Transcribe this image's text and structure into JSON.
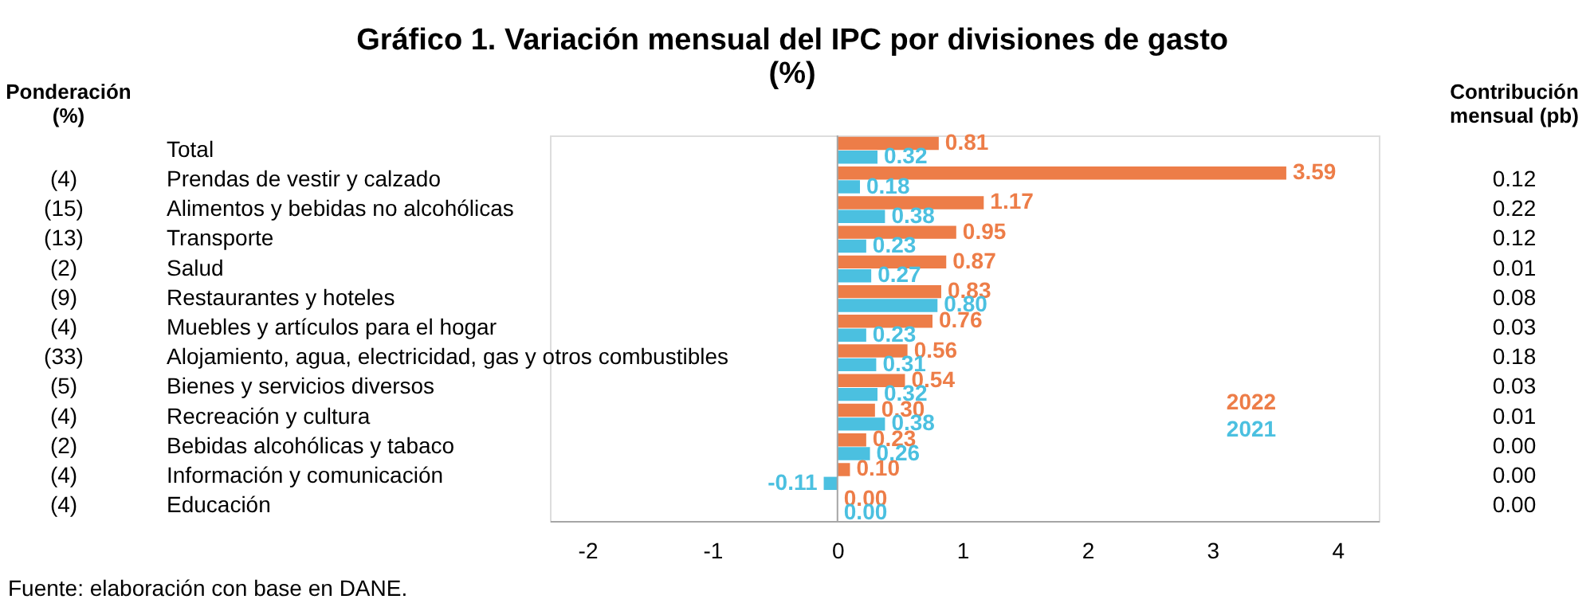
{
  "chart_data": {
    "type": "bar",
    "orientation": "horizontal",
    "title": "Gráfico 1. Variación mensual del IPC por divisiones de gasto",
    "subtitle": "(%)",
    "categories": [
      "Total",
      "Prendas de vestir y calzado",
      "Alimentos y bebidas no alcohólicas",
      "Transporte",
      "Salud",
      "Restaurantes y hoteles",
      "Muebles y artículos para el hogar",
      "Alojamiento, agua, electricidad, gas y otros combustibles",
      "Bienes y servicios diversos",
      "Recreación y cultura",
      "Bebidas alcohólicas y tabaco",
      "Información y comunicación",
      "Educación"
    ],
    "series": [
      {
        "name": "2022",
        "color": "#ed7d48",
        "values": [
          0.81,
          3.59,
          1.17,
          0.95,
          0.87,
          0.83,
          0.76,
          0.56,
          0.54,
          0.3,
          0.23,
          0.1,
          0.0
        ]
      },
      {
        "name": "2021",
        "color": "#4bc0e0",
        "values": [
          0.32,
          0.18,
          0.38,
          0.23,
          0.27,
          0.8,
          0.23,
          0.31,
          0.32,
          0.38,
          0.26,
          -0.11,
          0.0
        ]
      }
    ],
    "xlim": [
      -2.3,
      4.33
    ],
    "xticks": [
      {
        "value": -2,
        "label": "-2"
      },
      {
        "value": -1,
        "label": "-1"
      },
      {
        "value": 0,
        "label": "0"
      },
      {
        "value": 1,
        "label": "1"
      },
      {
        "value": 2,
        "label": "2"
      },
      {
        "value": 3,
        "label": "3"
      },
      {
        "value": 4,
        "label": "4"
      }
    ],
    "value_labels": [
      [
        "0.81",
        "3.59",
        "1.17",
        "0.95",
        "0.87",
        "0.83",
        "0.76",
        "0.56",
        "0.54",
        "0.30",
        "0.23",
        "0.10",
        "0.00"
      ],
      [
        "0.32",
        "0.18",
        "0.38",
        "0.23",
        "0.27",
        "0.80",
        "0.23",
        "0.31",
        "0.32",
        "0.38",
        "0.26",
        "-0.11",
        "0.00"
      ]
    ],
    "legend": "right",
    "grid": false,
    "ref_lines": [
      {
        "axis": "x",
        "value": 0,
        "color": "#a6a6a6"
      }
    ],
    "annotations": [
      "Ponderación\n(%)",
      "Contribución\nmensual (pb)",
      "Fuente: elaboración con base en DANE.",
      "(4)",
      "0.12",
      "(15)",
      "0.22",
      "(13)",
      "0.12",
      "(2)",
      "0.01",
      "(9)",
      "0.08",
      "(4)",
      "0.03",
      "(33)",
      "0.18",
      "(5)",
      "0.03",
      "(4)",
      "0.01",
      "(2)",
      "0.00",
      "(4)",
      "0.00",
      "(4)",
      "0.00"
    ]
  }
}
